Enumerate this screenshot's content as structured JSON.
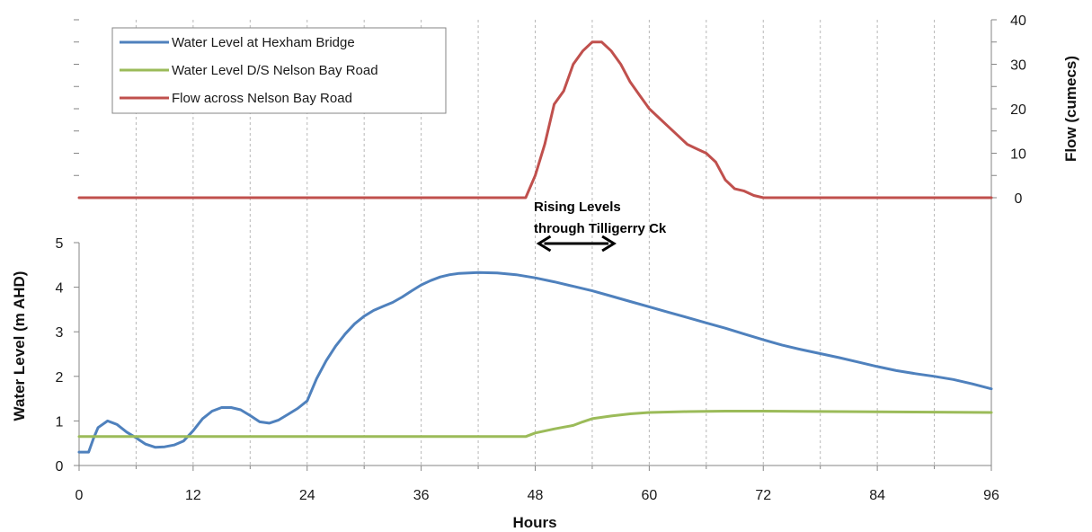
{
  "chart_data": {
    "type": "line",
    "xlabel": "Hours",
    "ylabel_left": "Water Level (m AHD)",
    "ylabel_right": "Flow (cumecs)",
    "x_ticks": [
      "0",
      "12",
      "24",
      "36",
      "48",
      "60",
      "72",
      "84",
      "96"
    ],
    "y_left_ticks": [
      "0",
      "1",
      "2",
      "3",
      "4",
      "5"
    ],
    "y_right_ticks": [
      "0",
      "10",
      "20",
      "30",
      "40"
    ],
    "xlim": [
      0,
      96
    ],
    "ylim_left": [
      0,
      5
    ],
    "ylim_right": [
      0,
      40
    ],
    "x_grid": "dashed vertical every 6 hours",
    "legend_position": "top-left",
    "annotation": {
      "line1": "Rising Levels",
      "line2": "through Tilligerry Ck",
      "arrow_from_x": 48,
      "arrow_to_x": 56
    },
    "series": [
      {
        "name": "Water Level at Hexham Bridge",
        "axis": "left",
        "color": "#4f81bd",
        "points": [
          [
            0,
            0.3
          ],
          [
            1,
            0.3
          ],
          [
            1.5,
            0.6
          ],
          [
            2,
            0.85
          ],
          [
            3,
            1.0
          ],
          [
            4,
            0.92
          ],
          [
            5,
            0.75
          ],
          [
            6,
            0.62
          ],
          [
            7,
            0.48
          ],
          [
            8,
            0.41
          ],
          [
            9,
            0.42
          ],
          [
            10,
            0.46
          ],
          [
            11,
            0.55
          ],
          [
            12,
            0.78
          ],
          [
            13,
            1.05
          ],
          [
            14,
            1.22
          ],
          [
            15,
            1.3
          ],
          [
            16,
            1.3
          ],
          [
            17,
            1.25
          ],
          [
            18,
            1.12
          ],
          [
            19,
            0.98
          ],
          [
            20,
            0.95
          ],
          [
            21,
            1.02
          ],
          [
            22,
            1.15
          ],
          [
            23,
            1.28
          ],
          [
            24,
            1.45
          ],
          [
            25,
            1.95
          ],
          [
            26,
            2.35
          ],
          [
            27,
            2.68
          ],
          [
            28,
            2.95
          ],
          [
            29,
            3.18
          ],
          [
            30,
            3.35
          ],
          [
            31,
            3.48
          ],
          [
            32,
            3.57
          ],
          [
            33,
            3.66
          ],
          [
            34,
            3.78
          ],
          [
            35,
            3.92
          ],
          [
            36,
            4.05
          ],
          [
            37,
            4.15
          ],
          [
            38,
            4.23
          ],
          [
            39,
            4.28
          ],
          [
            40,
            4.31
          ],
          [
            42,
            4.33
          ],
          [
            44,
            4.32
          ],
          [
            46,
            4.28
          ],
          [
            48,
            4.21
          ],
          [
            50,
            4.12
          ],
          [
            52,
            4.02
          ],
          [
            54,
            3.92
          ],
          [
            56,
            3.8
          ],
          [
            58,
            3.68
          ],
          [
            60,
            3.56
          ],
          [
            62,
            3.44
          ],
          [
            64,
            3.32
          ],
          [
            66,
            3.2
          ],
          [
            68,
            3.08
          ],
          [
            70,
            2.95
          ],
          [
            72,
            2.82
          ],
          [
            74,
            2.7
          ],
          [
            76,
            2.6
          ],
          [
            78,
            2.51
          ],
          [
            80,
            2.42
          ],
          [
            82,
            2.32
          ],
          [
            84,
            2.22
          ],
          [
            86,
            2.13
          ],
          [
            88,
            2.06
          ],
          [
            90,
            2.0
          ],
          [
            92,
            1.93
          ],
          [
            94,
            1.83
          ],
          [
            96,
            1.72
          ]
        ]
      },
      {
        "name": "Water Level D/S Nelson Bay Road",
        "axis": "left",
        "color": "#9bbb59",
        "points": [
          [
            0,
            0.65
          ],
          [
            47,
            0.65
          ],
          [
            48,
            0.73
          ],
          [
            50,
            0.82
          ],
          [
            51,
            0.86
          ],
          [
            52,
            0.9
          ],
          [
            53,
            0.98
          ],
          [
            54,
            1.05
          ],
          [
            56,
            1.11
          ],
          [
            58,
            1.16
          ],
          [
            60,
            1.19
          ],
          [
            64,
            1.21
          ],
          [
            68,
            1.22
          ],
          [
            72,
            1.22
          ],
          [
            80,
            1.21
          ],
          [
            88,
            1.2
          ],
          [
            96,
            1.19
          ]
        ]
      },
      {
        "name": "Flow across Nelson Bay Road",
        "axis": "right",
        "color": "#c0504d",
        "points": [
          [
            0,
            0
          ],
          [
            47,
            0
          ],
          [
            48,
            5
          ],
          [
            49,
            12
          ],
          [
            50,
            21
          ],
          [
            51,
            24
          ],
          [
            52,
            30
          ],
          [
            53,
            33
          ],
          [
            54,
            35
          ],
          [
            55,
            35
          ],
          [
            56,
            33
          ],
          [
            57,
            30
          ],
          [
            58,
            26
          ],
          [
            59,
            23
          ],
          [
            60,
            20
          ],
          [
            61,
            18
          ],
          [
            62,
            16
          ],
          [
            63,
            14
          ],
          [
            64,
            12
          ],
          [
            65,
            11
          ],
          [
            66,
            10
          ],
          [
            67,
            8
          ],
          [
            68,
            4
          ],
          [
            69,
            2
          ],
          [
            70,
            1.5
          ],
          [
            71,
            0.5
          ],
          [
            72,
            0
          ],
          [
            96,
            0
          ]
        ]
      }
    ]
  }
}
